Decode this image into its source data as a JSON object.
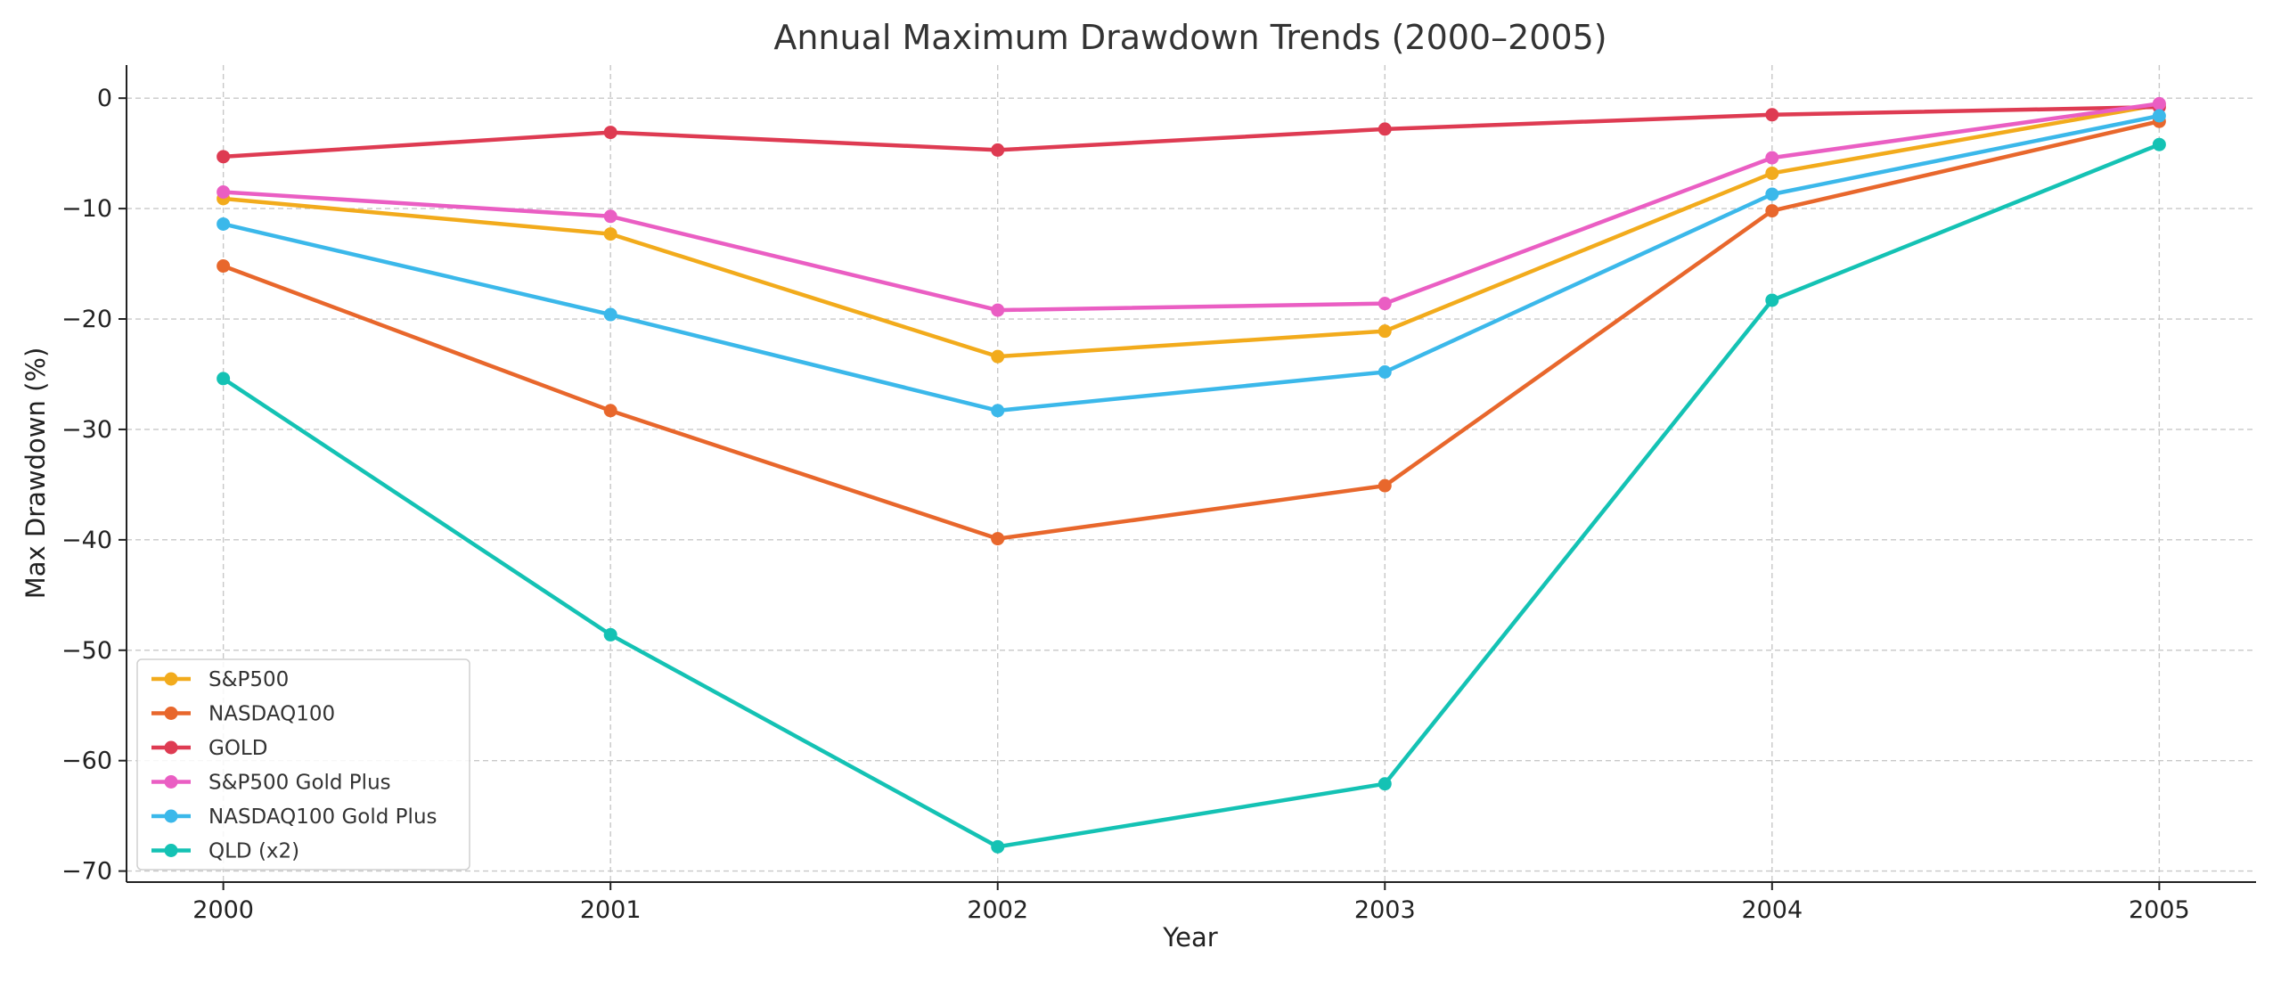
{
  "chart_data": {
    "type": "line",
    "title": "Annual Maximum Drawdown Trends (2000–2005)",
    "xlabel": "Year",
    "ylabel": "Max Drawdown (%)",
    "x": [
      "2000",
      "2001",
      "2002",
      "2003",
      "2004",
      "2005"
    ],
    "xlim": [
      -0.25,
      5.25
    ],
    "ylim": [
      -71,
      3
    ],
    "yticks": [
      0,
      -10,
      -20,
      -30,
      -40,
      -50,
      -60,
      -70
    ],
    "ytick_labels": [
      "0",
      "−10",
      "−20",
      "−30",
      "−40",
      "−50",
      "−60",
      "−70"
    ],
    "grid": true,
    "legend_position": "lower-left",
    "series": [
      {
        "name": "S&P500",
        "color": "#f2ab1c",
        "values": [
          -9.1,
          -12.3,
          -23.4,
          -21.1,
          -6.8,
          -0.6
        ]
      },
      {
        "name": "NASDAQ100",
        "color": "#e8672c",
        "values": [
          -15.2,
          -28.3,
          -39.9,
          -35.1,
          -10.2,
          -2.1
        ]
      },
      {
        "name": "GOLD",
        "color": "#de3b52",
        "values": [
          -5.3,
          -3.1,
          -4.7,
          -2.8,
          -1.5,
          -0.8
        ]
      },
      {
        "name": "S&P500 Gold Plus",
        "color": "#ea5ec3",
        "values": [
          -8.5,
          -10.7,
          -19.2,
          -18.6,
          -5.4,
          -0.5
        ]
      },
      {
        "name": "NASDAQ100 Gold Plus",
        "color": "#3bb8ea",
        "values": [
          -11.4,
          -19.6,
          -28.3,
          -24.8,
          -8.7,
          -1.6
        ]
      },
      {
        "name": "QLD (x2)",
        "color": "#14c2b4",
        "values": [
          -25.4,
          -48.6,
          -67.8,
          -62.1,
          -18.3,
          -4.2
        ]
      }
    ]
  }
}
